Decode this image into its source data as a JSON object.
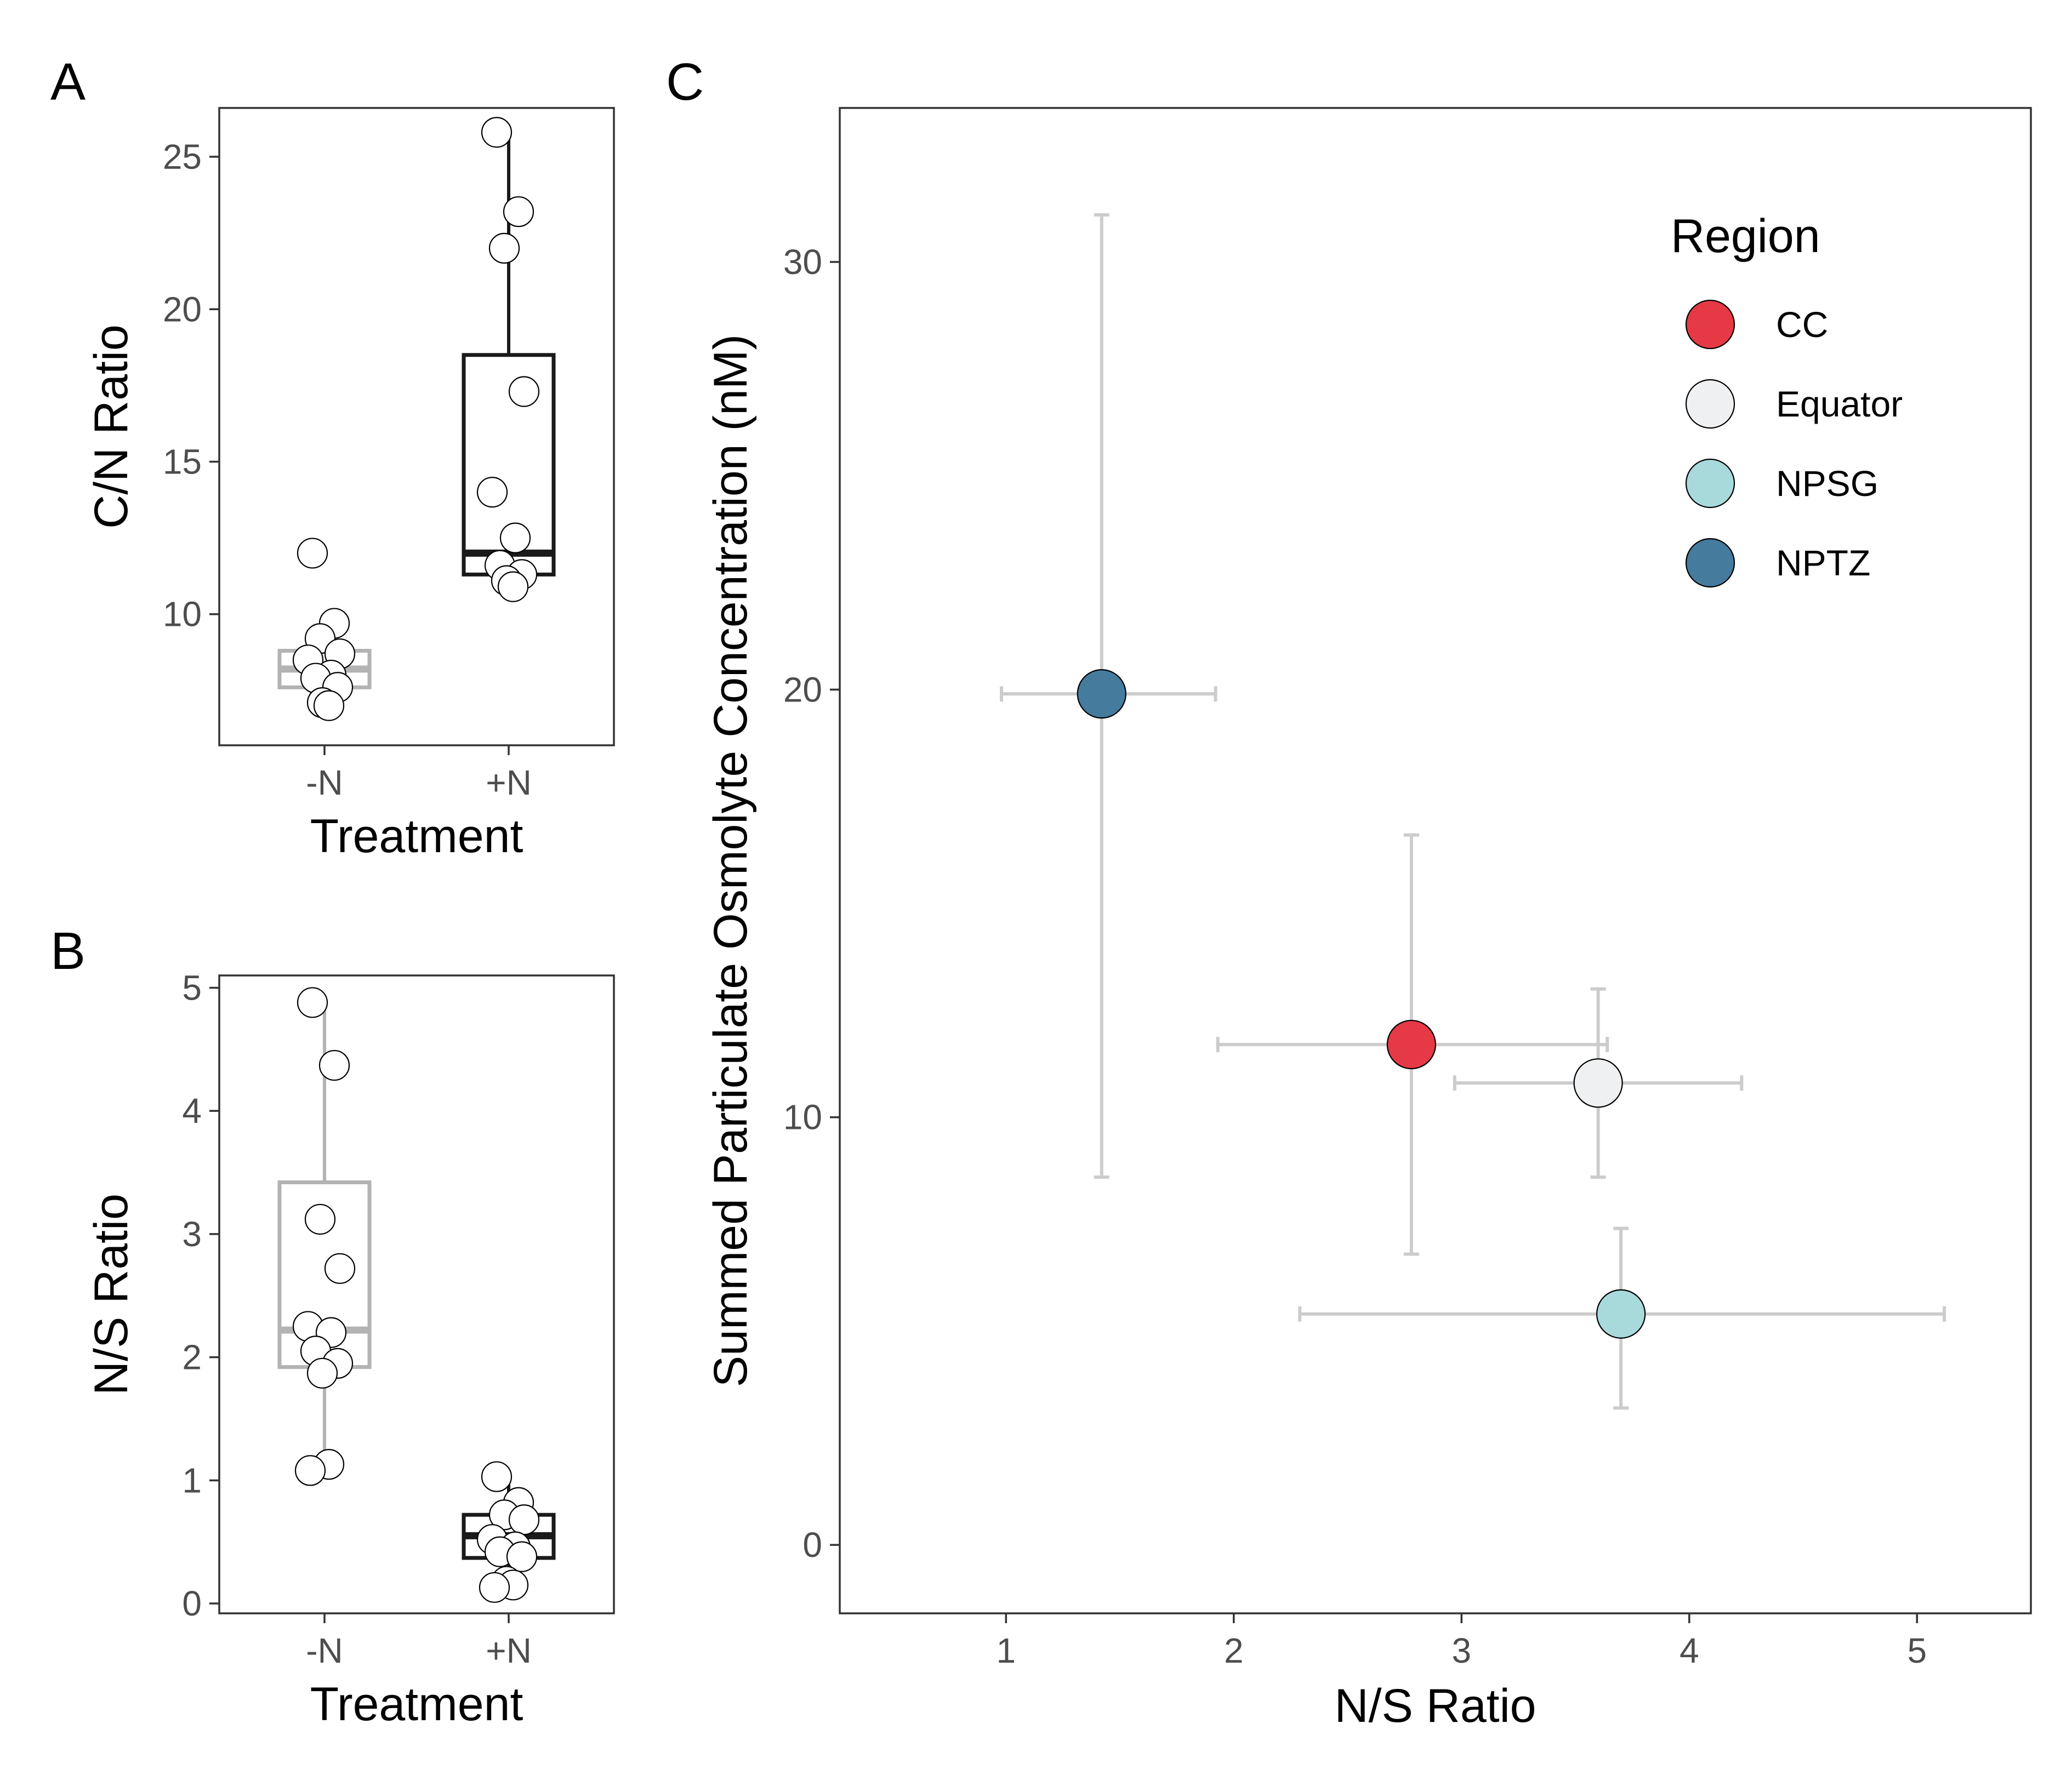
{
  "figure": {
    "panels": [
      "A",
      "B",
      "C"
    ]
  },
  "chart_data": [
    {
      "panel": "A",
      "type": "box",
      "xlabel": "Treatment",
      "ylabel": "C/N Ratio",
      "categories": [
        "-N",
        "+N"
      ],
      "yticks": [
        10,
        15,
        20,
        25
      ],
      "ylim": [
        5.7,
        26.6
      ],
      "boxes": [
        {
          "category": "-N",
          "q1": 7.6,
          "median": 8.2,
          "q3": 8.8,
          "whisker_low": 7.0,
          "whisker_high": 8.8,
          "color": "#b3b3b3",
          "points": [
            12.0,
            9.7,
            9.2,
            8.7,
            8.5,
            8.0,
            7.9,
            7.6,
            7.1,
            7.0
          ]
        },
        {
          "category": "+N",
          "q1": 11.3,
          "median": 12.0,
          "q3": 18.5,
          "whisker_low": 11.3,
          "whisker_high": 25.8,
          "color": "#1a1a1a",
          "points": [
            25.8,
            23.2,
            22.0,
            17.3,
            14.0,
            12.5,
            11.6,
            11.3,
            11.1,
            10.9
          ]
        }
      ]
    },
    {
      "panel": "B",
      "type": "box",
      "xlabel": "Treatment",
      "ylabel": "N/S Ratio",
      "categories": [
        "-N",
        "+N"
      ],
      "yticks": [
        0,
        1,
        2,
        3,
        4,
        5
      ],
      "ylim": [
        -0.08,
        5.1
      ],
      "boxes": [
        {
          "category": "-N",
          "q1": 1.92,
          "median": 2.22,
          "q3": 3.42,
          "whisker_low": 1.08,
          "whisker_high": 4.88,
          "color": "#b3b3b3",
          "points": [
            4.88,
            4.37,
            3.12,
            2.72,
            2.25,
            2.2,
            2.05,
            1.95,
            1.87,
            1.13,
            1.08
          ]
        },
        {
          "category": "+N",
          "q1": 0.37,
          "median": 0.55,
          "q3": 0.72,
          "whisker_low": 0.13,
          "whisker_high": 1.03,
          "color": "#1a1a1a",
          "points": [
            1.03,
            0.82,
            0.72,
            0.68,
            0.52,
            0.46,
            0.42,
            0.38,
            0.18,
            0.15,
            0.13
          ]
        }
      ]
    },
    {
      "panel": "C",
      "type": "scatter",
      "xlabel": "N/S Ratio",
      "ylabel": "Summed Particulate Osmolyte Concentration (nM)",
      "xlim": [
        0.27,
        5.5
      ],
      "ylim": [
        -1.6,
        33.6
      ],
      "xticks": [
        1,
        2,
        3,
        4,
        5
      ],
      "yticks": [
        0,
        10,
        20,
        30
      ],
      "legend": {
        "title": "Region",
        "position": "top-right"
      },
      "errorbar_color": "#cccccc",
      "series": [
        {
          "name": "CC",
          "color": "#e63946",
          "x": 2.78,
          "y": 11.7,
          "x_low": 1.93,
          "x_high": 3.64,
          "y_low": 6.8,
          "y_high": 16.6
        },
        {
          "name": "Equator",
          "color": "#eef0f1",
          "x": 3.6,
          "y": 10.8,
          "x_low": 2.97,
          "x_high": 4.23,
          "y_low": 8.6,
          "y_high": 13.0
        },
        {
          "name": "NPSG",
          "color": "#a8dadc",
          "x": 3.7,
          "y": 5.4,
          "x_low": 2.29,
          "x_high": 5.12,
          "y_low": 3.2,
          "y_high": 7.4
        },
        {
          "name": "NPTZ",
          "color": "#457b9d",
          "x": 1.42,
          "y": 19.9,
          "x_low": 0.98,
          "x_high": 1.92,
          "y_low": 8.6,
          "y_high": 31.1
        }
      ]
    }
  ]
}
